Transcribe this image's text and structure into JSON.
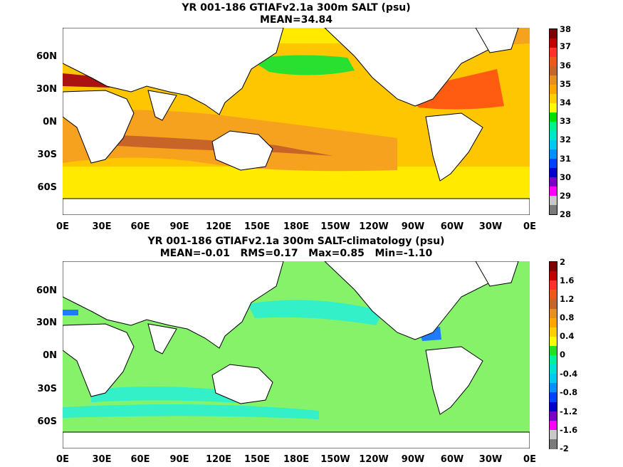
{
  "panels": [
    {
      "title": "YR 001-186 GTIAFv2.1a 300m SALT (psu)",
      "subtitle": "MEAN=34.84",
      "lat_labels": [
        "60N",
        "30N",
        "0N",
        "30S",
        "60S"
      ],
      "lon_labels": [
        "0E",
        "30E",
        "60E",
        "90E",
        "120E",
        "150E",
        "180E",
        "150W",
        "120W",
        "90W",
        "60W",
        "30W",
        "0E"
      ],
      "colorbar": {
        "labels": [
          "38",
          "37",
          "36",
          "35",
          "34",
          "33",
          "32",
          "31",
          "30",
          "29",
          "28"
        ],
        "colors": [
          "#7f0000",
          "#c00000",
          "#ff3030",
          "#f05818",
          "#c86428",
          "#e8901c",
          "#ffa500",
          "#ffcf00",
          "#ffff00",
          "#00e000",
          "#00f090",
          "#00e6c8",
          "#00c8f0",
          "#0090ff",
          "#0040ff",
          "#0000c8",
          "#7a00c8",
          "#ff00ff",
          "#c8c8c8",
          "#7a7a7a"
        ]
      },
      "colors": {
        "ocean": "#fdc600",
        "highlat": "#ffea00",
        "tropics": "#f6a21f",
        "med": "#ab1212",
        "atlantic": "#ff5c12",
        "arctic": "#f5a21c",
        "npac": "#29e031"
      }
    },
    {
      "title": "YR 001-186 GTIAFv2.1a 300m SALT-climatology (psu)",
      "subtitle": "MEAN=-0.01   RMS=0.17   Max=0.85   Min=-1.10",
      "lat_labels": [
        "60N",
        "30N",
        "0N",
        "30S",
        "60S"
      ],
      "lon_labels": [
        "0E",
        "30E",
        "60E",
        "90E",
        "120E",
        "150E",
        "180E",
        "150W",
        "120W",
        "90W",
        "60W",
        "30W",
        "0E"
      ],
      "colorbar": {
        "labels": [
          "2",
          "1.6",
          "1.2",
          "0.8",
          "0.4",
          "0",
          "-0.4",
          "-0.8",
          "-1.2",
          "-1.6",
          "-2"
        ],
        "colors": [
          "#7f0000",
          "#c00000",
          "#ff3030",
          "#f05818",
          "#c86428",
          "#e8901c",
          "#ffa500",
          "#ffcf00",
          "#ffff00",
          "#22e022",
          "#00f0a0",
          "#00e0d0",
          "#00c8f0",
          "#0090ff",
          "#0040ff",
          "#0000c8",
          "#7a00c8",
          "#ff00ff",
          "#c8c8c8",
          "#7a7a7a"
        ]
      },
      "colors": {
        "ocean": "#86f26a",
        "cyan": "#33f0c8",
        "light": "#18e8f0",
        "blue": "#1e7bff",
        "darkgreen": "#18d018"
      }
    }
  ]
}
